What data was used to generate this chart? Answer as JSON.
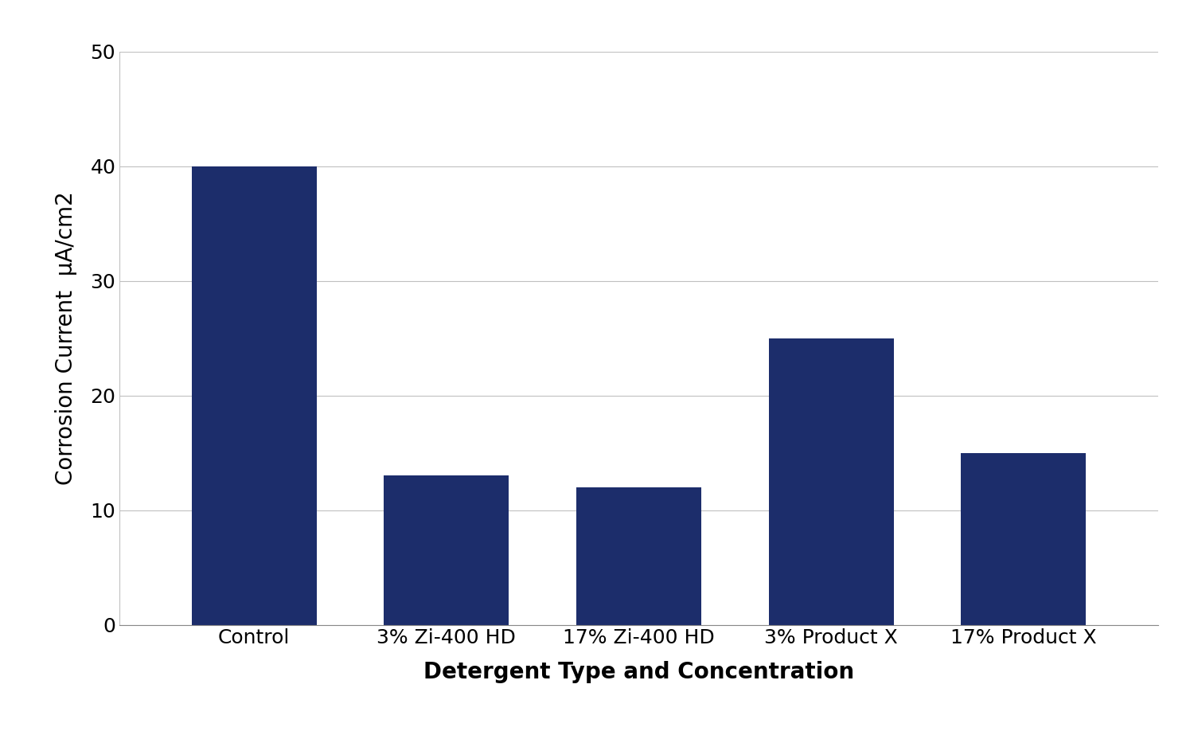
{
  "categories": [
    "Control",
    "3% Zi-400 HD",
    "17% Zi-400 HD",
    "3% Product X",
    "17% Product X"
  ],
  "values": [
    40,
    13,
    12,
    25,
    15
  ],
  "bar_color": "#1c2d6b",
  "ylabel": "Corrosion Current  μA/cm2",
  "xlabel": "Detergent Type and Concentration",
  "ylim": [
    0,
    50
  ],
  "yticks": [
    0,
    10,
    20,
    30,
    40,
    50
  ],
  "background_color": "#ffffff",
  "ylabel_fontsize": 20,
  "xlabel_fontsize": 20,
  "ytick_fontsize": 18,
  "xtick_fontsize": 18,
  "bar_width": 0.65,
  "figsize": [
    15.0,
    9.23
  ],
  "dpi": 100
}
